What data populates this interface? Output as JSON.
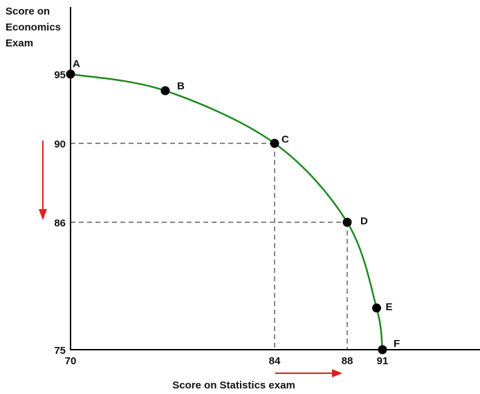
{
  "chart_data": {
    "type": "line",
    "title": "",
    "ylabel_lines": [
      "Score on",
      "Economics",
      "Exam"
    ],
    "xlabel": "Score on Statistics exam",
    "x_ticks": [
      {
        "value": 70,
        "label": "70"
      },
      {
        "value": 84,
        "label": "84"
      },
      {
        "value": 88,
        "label": "88"
      },
      {
        "value": 91,
        "label": "91"
      }
    ],
    "y_ticks": [
      {
        "value": 95,
        "label": "95"
      },
      {
        "value": 90,
        "label": "90"
      },
      {
        "value": 86,
        "label": "86"
      },
      {
        "value": 75,
        "label": "75"
      }
    ],
    "points": [
      {
        "label": "A",
        "x": 70,
        "y": 95
      },
      {
        "label": "B",
        "x": 76.5,
        "y": 93.8
      },
      {
        "label": "C",
        "x": 84,
        "y": 90
      },
      {
        "label": "D",
        "x": 88,
        "y": 86
      },
      {
        "label": "E",
        "x": 90.5,
        "y": 78.6
      },
      {
        "label": "F",
        "x": 91,
        "y": 75
      }
    ],
    "dashed_guides": [
      "C",
      "D"
    ],
    "curve_color": "#1f8a1f",
    "arrow_color": "#e02020",
    "grid": false,
    "legend": "none"
  }
}
